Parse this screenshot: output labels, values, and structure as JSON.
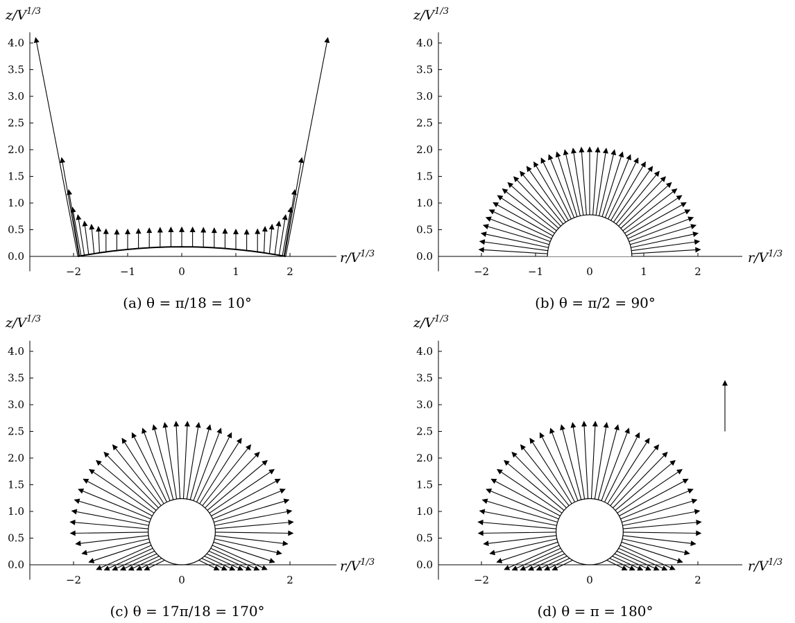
{
  "figure": {
    "panels": [
      {
        "id": "a",
        "caption": "(a) θ = π/18 = 10°",
        "xlabel": "r/V^{1/3}",
        "ylabel": "z/V^{1/3}",
        "xticks": [
          "−2",
          "−1",
          "0",
          "1",
          "2"
        ],
        "yticks": [
          "0.0",
          "0.5",
          "1.0",
          "1.5",
          "2.0",
          "2.5",
          "3.0",
          "3.5",
          "4.0"
        ]
      },
      {
        "id": "b",
        "caption": "(b) θ = π/2 = 90°",
        "xlabel": "r/V^{1/3}",
        "ylabel": "z/V^{1/3}",
        "xticks": [
          "−2",
          "−1",
          "0",
          "1",
          "2"
        ],
        "yticks": [
          "0.0",
          "0.5",
          "1.0",
          "1.5",
          "2.0",
          "2.5",
          "3.0",
          "3.5",
          "4.0"
        ]
      },
      {
        "id": "c",
        "caption": "(c) θ = 17π/18 = 170°",
        "xlabel": "r/V^{1/3}",
        "ylabel": "z/V^{1/3}",
        "xticks": [
          "−2",
          "0",
          "2"
        ],
        "yticks": [
          "0.0",
          "0.5",
          "1.0",
          "1.5",
          "2.0",
          "2.5",
          "3.0",
          "3.5",
          "4.0"
        ]
      },
      {
        "id": "d",
        "caption": "(d) θ = π = 180°",
        "xlabel": "r/V^{1/3}",
        "ylabel": "z/V^{1/3}",
        "xticks": [
          "−2",
          "0",
          "2"
        ],
        "yticks": [
          "0.0",
          "0.5",
          "1.0",
          "1.5",
          "2.0",
          "2.5",
          "3.0",
          "3.5",
          "4.0"
        ]
      }
    ]
  },
  "chart_data": [
    {
      "type": "vector-field",
      "panel": "a",
      "title": "(a) θ = π/18 = 10°",
      "xlabel": "r/V^{1/3}",
      "ylabel": "z/V^{1/3}",
      "xlim": [
        -2.8,
        2.8
      ],
      "ylim": [
        -0.25,
        4.2
      ],
      "drop_shape": "thin cap",
      "cap_half_width": 1.92,
      "cap_height": 0.18,
      "arrow_count": 27,
      "arrows_from_surface": "vertical, length ≈ 0.37; tilting outward and lengthening toward edges",
      "edge_arrow_tips": [
        [
          -2.7,
          4.1
        ],
        [
          2.7,
          4.1
        ],
        [
          -2.2,
          1.85
        ],
        [
          2.2,
          1.85
        ],
        [
          -2.07,
          1.25
        ],
        [
          2.07,
          1.25
        ]
      ]
    },
    {
      "type": "vector-field",
      "panel": "b",
      "title": "(b) θ = π/2 = 90°",
      "xlabel": "r/V^{1/3}",
      "ylabel": "z/V^{1/3}",
      "xlim": [
        -2.8,
        2.8
      ],
      "ylim": [
        -0.25,
        4.2
      ],
      "drop_shape": "hemisphere",
      "drop_radius": 0.78,
      "drop_center": [
        0,
        0
      ],
      "arrow_count": 41,
      "arrow_tip_radius": 2.05,
      "arrow_direction": "radial outward"
    },
    {
      "type": "vector-field",
      "panel": "c",
      "title": "(c) θ = 17π/18 = 170°",
      "xlabel": "r/V^{1/3}",
      "ylabel": "z/V^{1/3}",
      "xlim": [
        -2.8,
        2.8
      ],
      "ylim": [
        -0.25,
        4.2
      ],
      "drop_shape": "near-sphere",
      "drop_radius": 0.62,
      "drop_center": [
        0,
        0.62
      ],
      "arrow_count": 52,
      "arrow_tip_radius": 2.07,
      "arrow_direction": "radial outward"
    },
    {
      "type": "vector-field",
      "panel": "d",
      "title": "(d) θ = π = 180°",
      "xlabel": "r/V^{1/3}",
      "ylabel": "z/V^{1/3}",
      "xlim": [
        -2.8,
        2.8
      ],
      "ylim": [
        -0.25,
        4.2
      ],
      "drop_shape": "sphere",
      "drop_radius": 0.62,
      "drop_center": [
        0,
        0.62
      ],
      "arrow_count": 52,
      "arrow_tip_radius": 2.07,
      "arrow_direction": "radial outward",
      "reference_arrow": {
        "from": [
          2.5,
          2.5
        ],
        "to": [
          2.5,
          3.45
        ]
      }
    }
  ]
}
